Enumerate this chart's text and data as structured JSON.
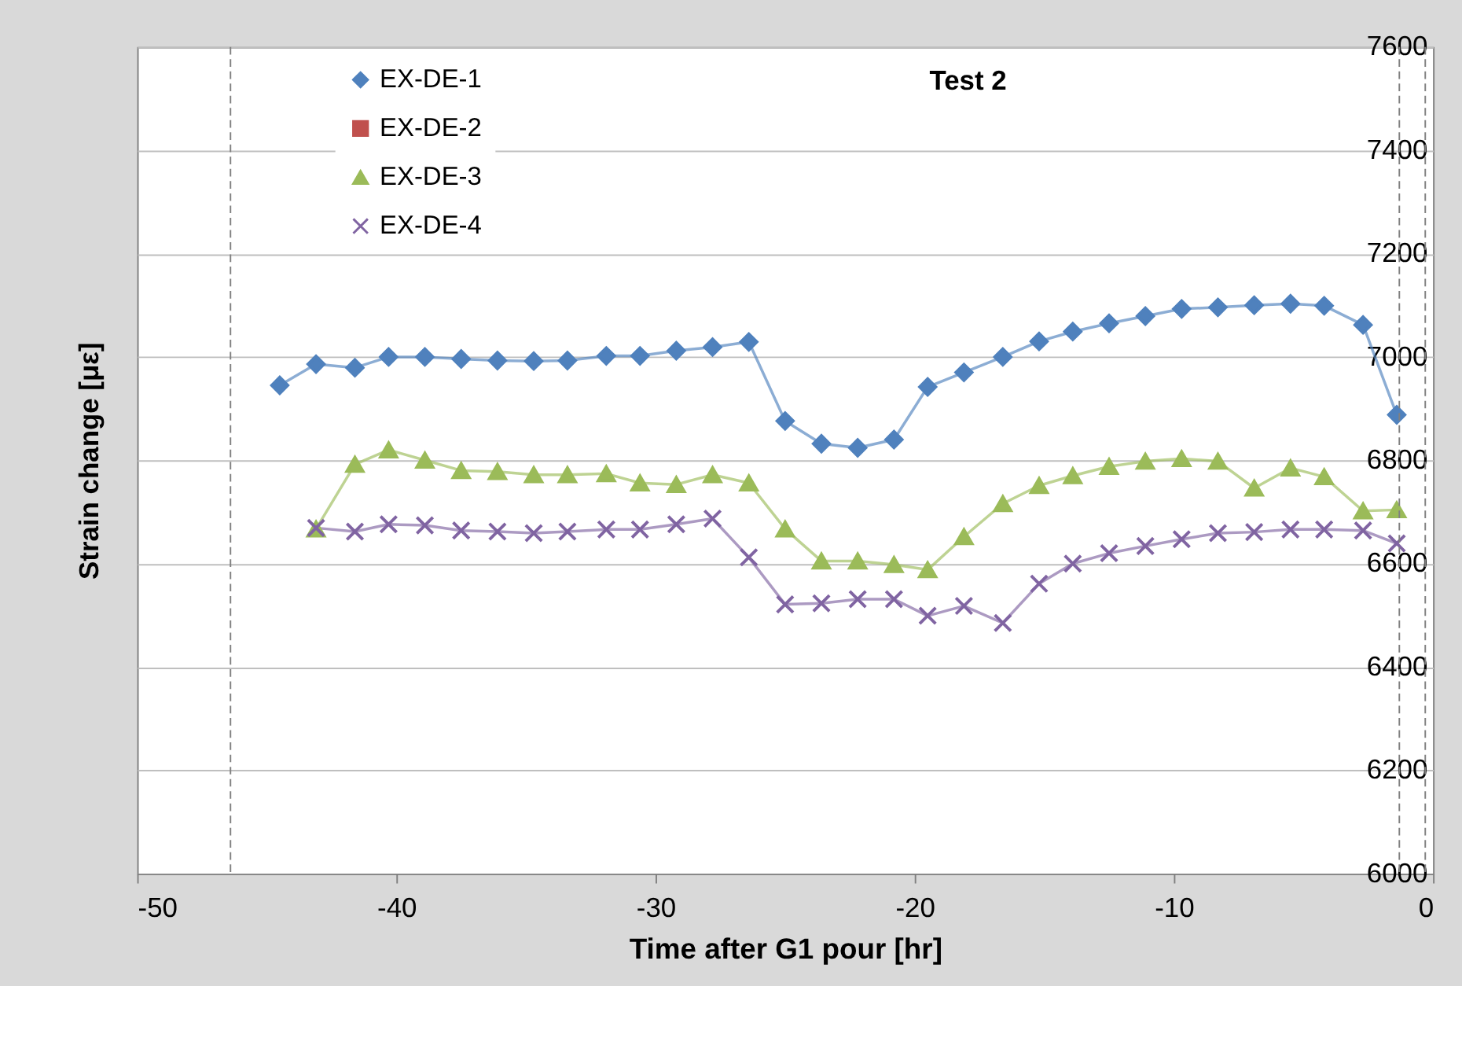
{
  "chart_data": {
    "type": "line",
    "title": "Test 2",
    "xlabel": "Time after G1 pour [hr]",
    "ylabel": "Strain change [με]",
    "xlim": [
      -50,
      0
    ],
    "xticks": [
      -50,
      -40,
      -30,
      -20,
      -10,
      0
    ],
    "ylim": [
      6000,
      7600
    ],
    "yticks": [
      6000,
      6200,
      6400,
      6600,
      6800,
      7000,
      7200,
      7400,
      7600
    ],
    "grid": "y",
    "legend": "top left",
    "line_style": "solid",
    "ref_lines": [
      {
        "axis": "x",
        "value": -46.4,
        "color": "#808080",
        "line_style": "dashed"
      },
      {
        "axis": "x",
        "value": -1.3,
        "color": "#808080",
        "line_style": "dashed"
      },
      {
        "axis": "x",
        "value": -0.3,
        "color": "#808080",
        "line_style": "dashed"
      }
    ],
    "series": [
      {
        "name": "EX-DE-1",
        "color": "#4f81bd",
        "marker": "diamond",
        "x": [
          -44.5,
          -43.1,
          -41.6,
          -40.3,
          -38.9,
          -37.5,
          -36.1,
          -34.7,
          -33.4,
          -31.9,
          -30.6,
          -29.2,
          -27.8,
          -26.4,
          -25.0,
          -23.6,
          -22.2,
          -20.8,
          -19.5,
          -18.1,
          -16.6,
          -15.2,
          -13.9,
          -12.5,
          -11.1,
          -9.7,
          -8.3,
          -6.9,
          -5.5,
          -4.2,
          -2.7,
          -1.4
        ],
        "values": [
          6945,
          6986,
          6979,
          7000,
          7000,
          6996,
          6993,
          6992,
          6993,
          7002,
          7002,
          7012,
          7019,
          7029,
          6876,
          6832,
          6824,
          6840,
          6942,
          6970,
          7000,
          7030,
          7049,
          7065,
          7079,
          7093,
          7096,
          7100,
          7103,
          7099,
          7062,
          6888
        ]
      },
      {
        "name": "EX-DE-2",
        "color": "#c0504d",
        "marker": "square"
      },
      {
        "name": "EX-DE-3",
        "color": "#9bbb59",
        "marker": "triangle",
        "x": [
          -43.1,
          -41.6,
          -40.3,
          -38.9,
          -37.5,
          -36.1,
          -34.7,
          -33.4,
          -31.9,
          -30.6,
          -29.2,
          -27.8,
          -26.4,
          -25.0,
          -23.6,
          -22.2,
          -20.8,
          -19.5,
          -18.1,
          -16.6,
          -15.2,
          -13.9,
          -12.5,
          -11.1,
          -9.7,
          -8.3,
          -6.9,
          -5.5,
          -4.2,
          -2.7,
          -1.4
        ],
        "values": [
          6667,
          6792,
          6820,
          6800,
          6780,
          6778,
          6772,
          6772,
          6774,
          6756,
          6753,
          6772,
          6756,
          6667,
          6605,
          6605,
          6598,
          6588,
          6652,
          6716,
          6751,
          6770,
          6788,
          6798,
          6803,
          6798,
          6746,
          6785,
          6768,
          6702,
          6704
        ]
      },
      {
        "name": "EX-DE-4",
        "color": "#8064a2",
        "marker": "cross",
        "x": [
          -43.1,
          -41.6,
          -40.3,
          -38.9,
          -37.5,
          -36.1,
          -34.7,
          -33.4,
          -31.9,
          -30.6,
          -29.2,
          -27.8,
          -26.4,
          -25.0,
          -23.6,
          -22.2,
          -20.8,
          -19.5,
          -18.1,
          -16.6,
          -15.2,
          -13.9,
          -12.5,
          -11.1,
          -9.7,
          -8.3,
          -6.9,
          -5.5,
          -4.2,
          -2.7,
          -1.4
        ],
        "values": [
          6669,
          6662,
          6676,
          6674,
          6664,
          6662,
          6659,
          6662,
          6666,
          6666,
          6676,
          6687,
          6612,
          6521,
          6523,
          6531,
          6531,
          6499,
          6518,
          6485,
          6561,
          6600,
          6620,
          6634,
          6647,
          6659,
          6661,
          6666,
          6666,
          6664,
          6639
        ]
      }
    ]
  }
}
